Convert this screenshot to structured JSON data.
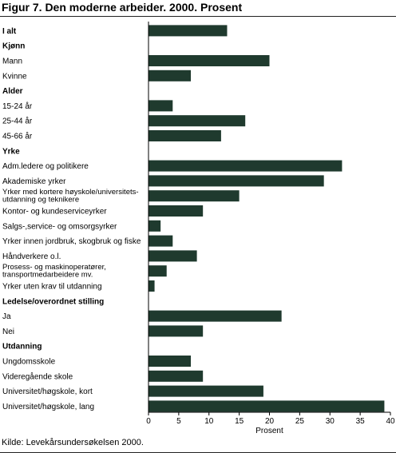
{
  "figure": {
    "title": "Figur 7. Den moderne arbeider. 2000. Prosent",
    "source": "Kilde: Levekårsundersøkelsen 2000."
  },
  "colors": {
    "bar": "#1f3a2e",
    "axis": "#000000"
  },
  "chart_data": {
    "type": "bar",
    "orientation": "horizontal",
    "xlabel": "Prosent",
    "xlim": [
      0,
      40
    ],
    "xticks": [
      0,
      5,
      10,
      15,
      20,
      25,
      30,
      35,
      40
    ],
    "grid": false,
    "rows": [
      {
        "label": "I alt",
        "value": 13,
        "heading": true
      },
      {
        "label": "Kjønn",
        "value": null,
        "heading": true
      },
      {
        "label": "Mann",
        "value": 20,
        "heading": false
      },
      {
        "label": "Kvinne",
        "value": 7,
        "heading": false
      },
      {
        "label": "Alder",
        "value": null,
        "heading": true
      },
      {
        "label": "15-24 år",
        "value": 4,
        "heading": false
      },
      {
        "label": "25-44 år",
        "value": 16,
        "heading": false
      },
      {
        "label": "45-66 år",
        "value": 12,
        "heading": false
      },
      {
        "label": "Yrke",
        "value": null,
        "heading": true
      },
      {
        "label": "Adm.ledere og politikere",
        "value": 32,
        "heading": false
      },
      {
        "label": "Akademiske yrker",
        "value": 29,
        "heading": false
      },
      {
        "label": "Yrker med kortere høyskole/universitets-\nutdanning og teknikere",
        "value": 15,
        "heading": false
      },
      {
        "label": "Kontor- og kundeserviceyrker",
        "value": 9,
        "heading": false
      },
      {
        "label": "Salgs-,service- og omsorgsyrker",
        "value": 2,
        "heading": false
      },
      {
        "label": "Yrker innen jordbruk, skogbruk og fiske",
        "value": 4,
        "heading": false
      },
      {
        "label": "Håndverkere o.l.",
        "value": 8,
        "heading": false
      },
      {
        "label": "Prosess- og maskinoperatører,\ntransportmedarbeidere mv.",
        "value": 3,
        "heading": false
      },
      {
        "label": "Yrker uten krav til utdanning",
        "value": 1,
        "heading": false
      },
      {
        "label": "Ledelse/overordnet stilling",
        "value": null,
        "heading": true
      },
      {
        "label": "Ja",
        "value": 22,
        "heading": false
      },
      {
        "label": "Nei",
        "value": 9,
        "heading": false
      },
      {
        "label": "Utdanning",
        "value": null,
        "heading": true
      },
      {
        "label": "Ungdomsskole",
        "value": 7,
        "heading": false
      },
      {
        "label": "Videregående skole",
        "value": 9,
        "heading": false
      },
      {
        "label": "Universitet/høgskole, kort",
        "value": 19,
        "heading": false
      },
      {
        "label": "Universitet/høgskole, lang",
        "value": 39,
        "heading": false
      }
    ]
  }
}
